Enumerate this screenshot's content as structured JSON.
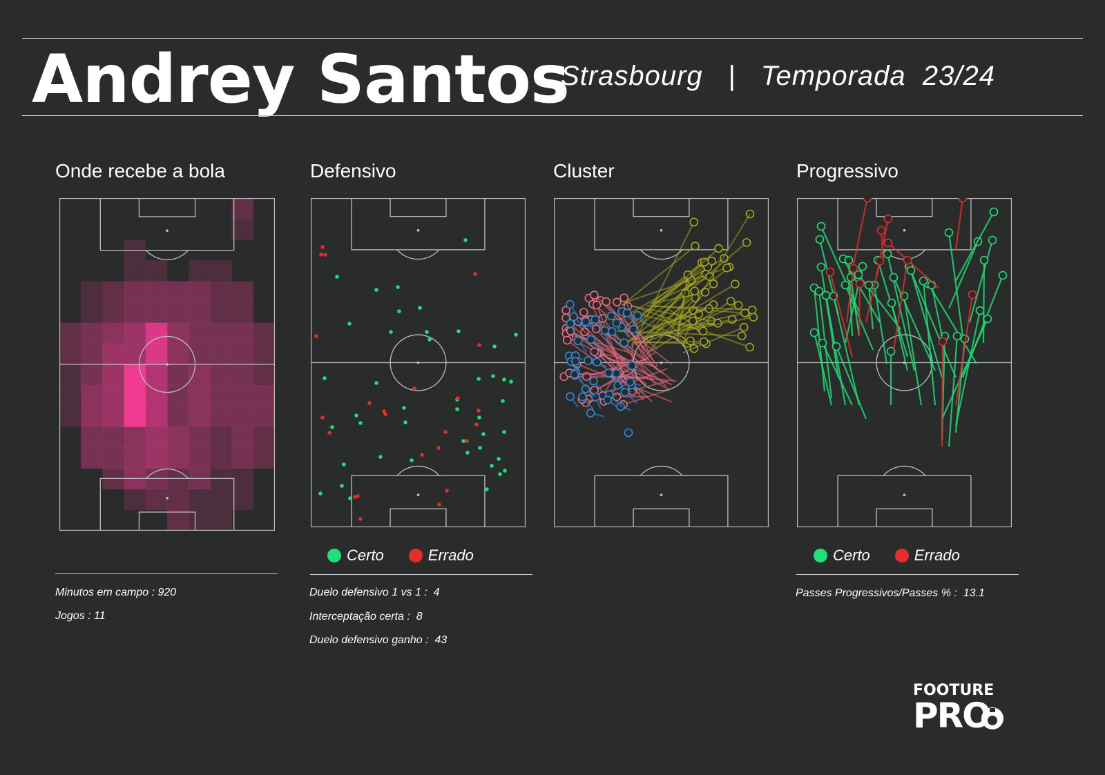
{
  "header": {
    "player_name": "Andrey Santos",
    "club": "Strasbourg",
    "separator": "|",
    "season_label": "Temporada",
    "season": "23/24"
  },
  "sections": {
    "heatmap": {
      "title": "Onde recebe a bola"
    },
    "defensive": {
      "title": "Defensivo"
    },
    "cluster": {
      "title": "Cluster"
    },
    "progressive": {
      "title": "Progressivo"
    }
  },
  "legend": {
    "correct": "Certo",
    "wrong": "Errado"
  },
  "stats": {
    "minutes_label": "Minutos em campo : 920",
    "games_label": "Jogos : 11",
    "duel_1v1_label": "Duelo defensivo 1 vs 1 :  4",
    "interceptions_label": "Interceptação certa :  8",
    "duels_won_label": "Duelo defensivo ganho :  43",
    "progressive_pct_label": "Passes Progressivos/Passes % :  13.1"
  },
  "logo": {
    "line1": "FOOTURE",
    "line2": "PRO"
  },
  "colors": {
    "background": "#2a2c2b",
    "correct": "#1be37a",
    "wrong": "#e52d2d",
    "heat": "#ff3c9a",
    "cluster_pink": "#f06a80",
    "cluster_blue": "#2a8de0",
    "cluster_olive": "#a6a81c"
  }
}
